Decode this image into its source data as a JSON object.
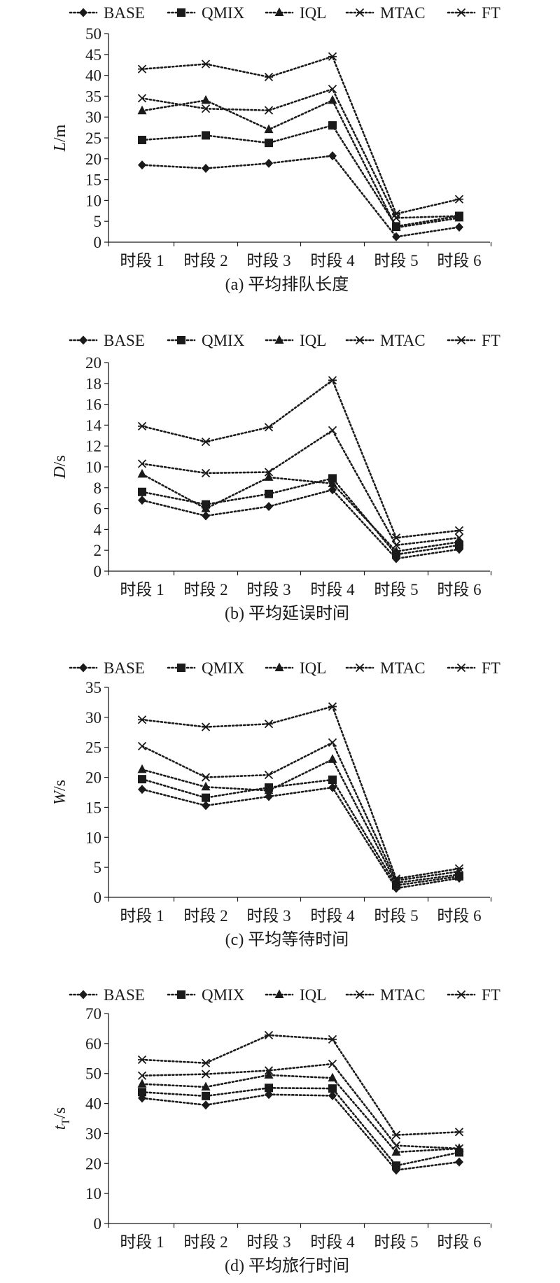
{
  "chart_data": [
    {
      "type": "line",
      "caption": "(a) 平均排队长度",
      "ylabel_main": "L",
      "ylabel_unit": "/m",
      "ylabel_sub": "",
      "ylim": [
        0,
        50
      ],
      "yticks": [
        0,
        5,
        10,
        15,
        20,
        25,
        30,
        35,
        40,
        45,
        50
      ],
      "categories": [
        "时段 1",
        "时段 2",
        "时段 3",
        "时段 4",
        "时段 5",
        "时段 6"
      ],
      "legend_position": "top",
      "grid": false,
      "series": [
        {
          "name": "BASE",
          "marker": "diamond",
          "values": [
            18.5,
            17.7,
            18.9,
            20.7,
            1.3,
            3.6
          ]
        },
        {
          "name": "QMIX",
          "marker": "square",
          "values": [
            24.5,
            25.6,
            23.8,
            28.0,
            3.8,
            6.3
          ]
        },
        {
          "name": "IQL",
          "marker": "triangle",
          "values": [
            31.5,
            34.0,
            27.0,
            34.0,
            3.5,
            5.8
          ]
        },
        {
          "name": "MTAC",
          "marker": "x",
          "values": [
            34.5,
            32.0,
            31.6,
            36.7,
            5.8,
            6.3
          ]
        },
        {
          "name": "FT",
          "marker": "asterisk",
          "values": [
            41.5,
            42.7,
            39.6,
            44.5,
            6.8,
            10.3
          ]
        }
      ]
    },
    {
      "type": "line",
      "caption": "(b) 平均延误时间",
      "ylabel_main": "D",
      "ylabel_unit": "/s",
      "ylabel_sub": "",
      "ylim": [
        0,
        20
      ],
      "yticks": [
        0,
        2,
        4,
        6,
        8,
        10,
        12,
        14,
        16,
        18,
        20
      ],
      "categories": [
        "时段 1",
        "时段 2",
        "时段 3",
        "时段 4",
        "时段 5",
        "时段 6"
      ],
      "legend_position": "top",
      "grid": false,
      "series": [
        {
          "name": "BASE",
          "marker": "diamond",
          "values": [
            6.8,
            5.3,
            6.2,
            7.8,
            1.2,
            2.1
          ]
        },
        {
          "name": "QMIX",
          "marker": "square",
          "values": [
            7.6,
            6.4,
            7.4,
            8.9,
            1.6,
            2.5
          ]
        },
        {
          "name": "IQL",
          "marker": "triangle",
          "values": [
            9.3,
            6.0,
            9.0,
            8.4,
            1.9,
            2.8
          ]
        },
        {
          "name": "MTAC",
          "marker": "x",
          "values": [
            10.3,
            9.4,
            9.5,
            13.5,
            2.5,
            3.2
          ]
        },
        {
          "name": "FT",
          "marker": "asterisk",
          "values": [
            13.9,
            12.4,
            13.8,
            18.3,
            3.2,
            3.9
          ]
        }
      ]
    },
    {
      "type": "line",
      "caption": "(c) 平均等待时间",
      "ylabel_main": "W",
      "ylabel_unit": "/s",
      "ylabel_sub": "",
      "ylim": [
        0,
        35
      ],
      "yticks": [
        0,
        5,
        10,
        15,
        20,
        25,
        30,
        35
      ],
      "categories": [
        "时段 1",
        "时段 2",
        "时段 3",
        "时段 4",
        "时段 5",
        "时段 6"
      ],
      "legend_position": "top",
      "grid": false,
      "series": [
        {
          "name": "BASE",
          "marker": "diamond",
          "values": [
            18.0,
            15.3,
            16.8,
            18.3,
            1.5,
            3.2
          ]
        },
        {
          "name": "QMIX",
          "marker": "square",
          "values": [
            19.7,
            16.6,
            18.3,
            19.6,
            2.0,
            3.5
          ]
        },
        {
          "name": "IQL",
          "marker": "triangle",
          "values": [
            21.3,
            18.4,
            17.8,
            23.0,
            2.4,
            3.8
          ]
        },
        {
          "name": "MTAC",
          "marker": "x",
          "values": [
            25.2,
            20.0,
            20.4,
            25.8,
            2.8,
            4.3
          ]
        },
        {
          "name": "FT",
          "marker": "asterisk",
          "values": [
            29.6,
            28.4,
            28.9,
            31.8,
            3.1,
            4.8
          ]
        }
      ]
    },
    {
      "type": "line",
      "caption": "(d) 平均旅行时间",
      "ylabel_main": "t",
      "ylabel_unit": "/s",
      "ylabel_sub": "T",
      "ylim": [
        0,
        70
      ],
      "yticks": [
        0,
        10,
        20,
        30,
        40,
        50,
        60,
        70
      ],
      "categories": [
        "时段 1",
        "时段 2",
        "时段 3",
        "时段 4",
        "时段 5",
        "时段 6"
      ],
      "legend_position": "top",
      "grid": false,
      "series": [
        {
          "name": "BASE",
          "marker": "diamond",
          "values": [
            41.8,
            39.5,
            43.0,
            42.6,
            17.8,
            20.5
          ]
        },
        {
          "name": "QMIX",
          "marker": "square",
          "values": [
            43.8,
            42.5,
            45.2,
            45.0,
            19.3,
            23.7
          ]
        },
        {
          "name": "IQL",
          "marker": "triangle",
          "values": [
            46.5,
            45.5,
            49.5,
            48.5,
            23.8,
            25.0
          ]
        },
        {
          "name": "MTAC",
          "marker": "x",
          "values": [
            49.3,
            49.8,
            51.0,
            53.2,
            26.0,
            25.0
          ]
        },
        {
          "name": "FT",
          "marker": "asterisk",
          "values": [
            54.6,
            53.5,
            62.8,
            61.4,
            29.5,
            30.5
          ]
        }
      ]
    }
  ]
}
